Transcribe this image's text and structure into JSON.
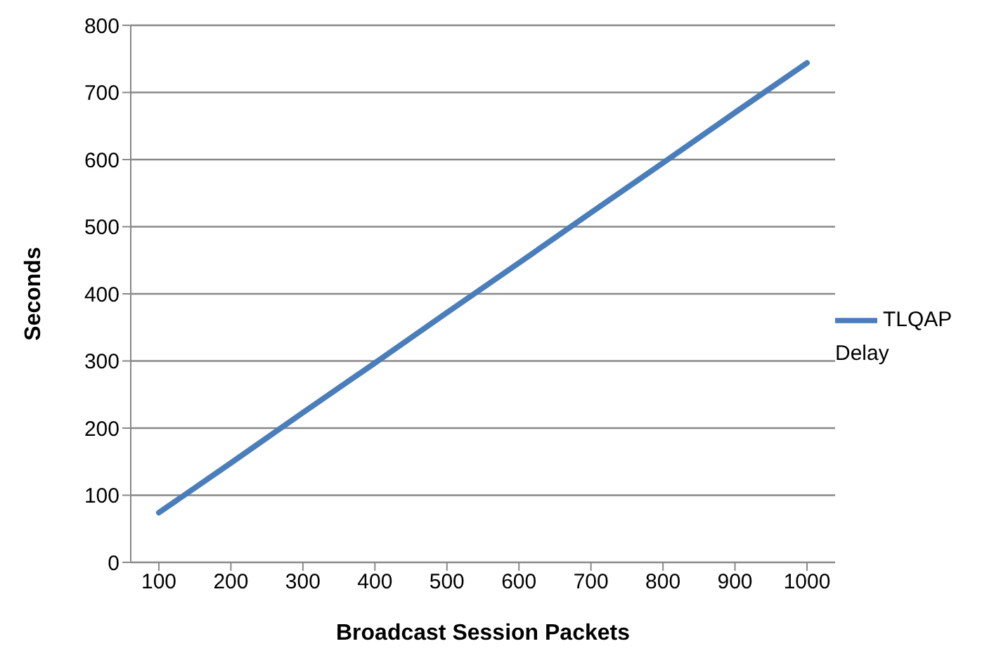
{
  "chart_data": {
    "type": "line",
    "xlabel": "Broadcast Session Packets",
    "ylabel": "Seconds",
    "categories": [
      "100",
      "200",
      "300",
      "400",
      "500",
      "600",
      "700",
      "800",
      "900",
      "1000"
    ],
    "series": [
      {
        "name": "TLQAP Delay",
        "color": "#4a7ebb",
        "values": [
          74,
          148,
          223,
          297,
          372,
          446,
          521,
          595,
          670,
          744
        ]
      }
    ],
    "ylim": [
      0,
      800
    ],
    "yticks": [
      0,
      100,
      200,
      300,
      400,
      500,
      600,
      700,
      800
    ],
    "grid": "y",
    "legend": "right",
    "marker": "none",
    "line_style": "solid"
  }
}
